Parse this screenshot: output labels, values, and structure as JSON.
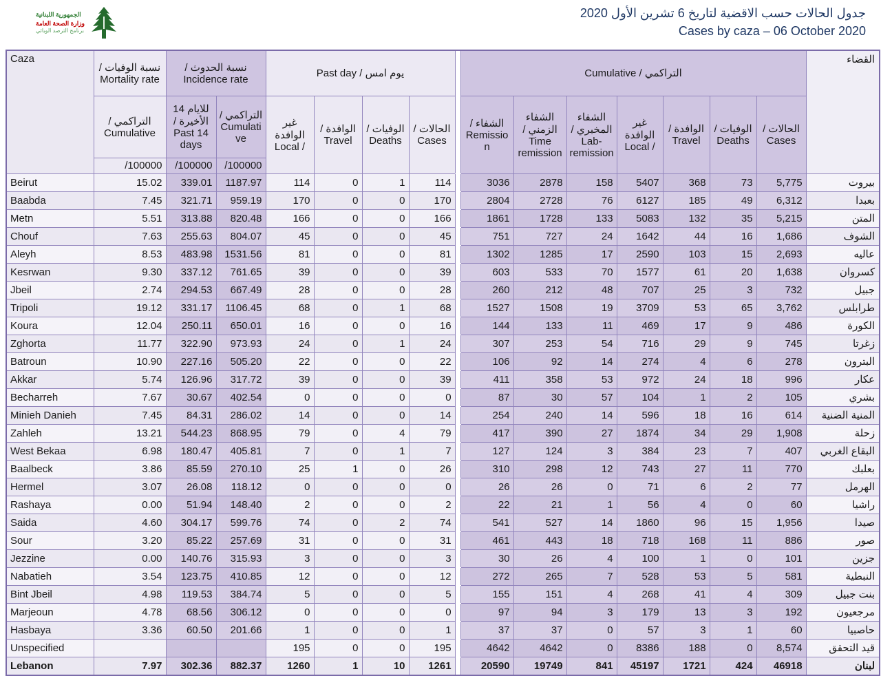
{
  "header": {
    "logo": {
      "line1": "الجمهورية اللبنانية",
      "line2": "وزارة الصحة العامة",
      "line3": "برنامج الترصد الوبائي"
    },
    "title_ar": "جدول الحالات حسب الاقضية لتاريخ  6 تشرين الأول 2020",
    "title_en": "Cases by caza – 06 October 2020"
  },
  "table": {
    "caza_en_label": "Caza",
    "caza_ar_label": "القضاء",
    "sections": {
      "mortality": {
        "label": "نسبة الوفيات /\nMortality rate",
        "sub_cumulative": "التراكمي /\nCumulative",
        "per": "/100000"
      },
      "incidence": {
        "label": "نسبة الحدوث /\nIncidence rate",
        "sub_past14": "للايام 14 الأخيرة /\nPast 14 days",
        "sub_cumulative": "التراكمي /\nCumulative",
        "per": "/100000"
      },
      "past_day": {
        "label": "Past day / يوم امس",
        "cols": [
          "غير الوافدة\nLocal /",
          "الوافدة /\nTravel",
          "الوفيات /\nDeaths",
          "الحالات /\nCases"
        ]
      },
      "cumulative": {
        "label": "Cumulative / التراكمي",
        "cols": [
          "الشفاء /\nRemission",
          "الشفاء الزمني /\nTime remission",
          "الشفاء المخبري /\nLab-remission",
          "غير الوافدة\nLocal /",
          "الوافدة /\nTravel",
          "الوفيات /\nDeaths",
          "الحالات /\nCases"
        ]
      }
    },
    "rows": [
      {
        "name_en": "Beirut",
        "mortality": "15.02",
        "incidence_14d": "339.01",
        "incidence_cum": "1187.97",
        "past_day": [
          "114",
          "0",
          "1",
          "114"
        ],
        "cumulative": [
          "3036",
          "2878",
          "158",
          "5407",
          "368",
          "73",
          "5,775"
        ],
        "name_ar": "بيروت"
      },
      {
        "name_en": "Baabda",
        "mortality": "7.45",
        "incidence_14d": "321.71",
        "incidence_cum": "959.19",
        "past_day": [
          "170",
          "0",
          "0",
          "170"
        ],
        "cumulative": [
          "2804",
          "2728",
          "76",
          "6127",
          "185",
          "49",
          "6,312"
        ],
        "name_ar": "بعبدا"
      },
      {
        "name_en": "Metn",
        "mortality": "5.51",
        "incidence_14d": "313.88",
        "incidence_cum": "820.48",
        "past_day": [
          "166",
          "0",
          "0",
          "166"
        ],
        "cumulative": [
          "1861",
          "1728",
          "133",
          "5083",
          "132",
          "35",
          "5,215"
        ],
        "name_ar": "المتن"
      },
      {
        "name_en": "Chouf",
        "mortality": "7.63",
        "incidence_14d": "255.63",
        "incidence_cum": "804.07",
        "past_day": [
          "45",
          "0",
          "0",
          "45"
        ],
        "cumulative": [
          "751",
          "727",
          "24",
          "1642",
          "44",
          "16",
          "1,686"
        ],
        "name_ar": "الشوف"
      },
      {
        "name_en": "Aleyh",
        "mortality": "8.53",
        "incidence_14d": "483.98",
        "incidence_cum": "1531.56",
        "past_day": [
          "81",
          "0",
          "0",
          "81"
        ],
        "cumulative": [
          "1302",
          "1285",
          "17",
          "2590",
          "103",
          "15",
          "2,693"
        ],
        "name_ar": "عاليه"
      },
      {
        "name_en": "Kesrwan",
        "mortality": "9.30",
        "incidence_14d": "337.12",
        "incidence_cum": "761.65",
        "past_day": [
          "39",
          "0",
          "0",
          "39"
        ],
        "cumulative": [
          "603",
          "533",
          "70",
          "1577",
          "61",
          "20",
          "1,638"
        ],
        "name_ar": "كسروان"
      },
      {
        "name_en": "Jbeil",
        "mortality": "2.74",
        "incidence_14d": "294.53",
        "incidence_cum": "667.49",
        "past_day": [
          "28",
          "0",
          "0",
          "28"
        ],
        "cumulative": [
          "260",
          "212",
          "48",
          "707",
          "25",
          "3",
          "732"
        ],
        "name_ar": "جبيل"
      },
      {
        "name_en": "Tripoli",
        "mortality": "19.12",
        "incidence_14d": "331.17",
        "incidence_cum": "1106.45",
        "past_day": [
          "68",
          "0",
          "1",
          "68"
        ],
        "cumulative": [
          "1527",
          "1508",
          "19",
          "3709",
          "53",
          "65",
          "3,762"
        ],
        "name_ar": "طرابلس"
      },
      {
        "name_en": "Koura",
        "mortality": "12.04",
        "incidence_14d": "250.11",
        "incidence_cum": "650.01",
        "past_day": [
          "16",
          "0",
          "0",
          "16"
        ],
        "cumulative": [
          "144",
          "133",
          "11",
          "469",
          "17",
          "9",
          "486"
        ],
        "name_ar": "الكورة"
      },
      {
        "name_en": "Zghorta",
        "mortality": "11.77",
        "incidence_14d": "322.90",
        "incidence_cum": "973.93",
        "past_day": [
          "24",
          "0",
          "1",
          "24"
        ],
        "cumulative": [
          "307",
          "253",
          "54",
          "716",
          "29",
          "9",
          "745"
        ],
        "name_ar": "زغرتا"
      },
      {
        "name_en": "Batroun",
        "mortality": "10.90",
        "incidence_14d": "227.16",
        "incidence_cum": "505.20",
        "past_day": [
          "22",
          "0",
          "0",
          "22"
        ],
        "cumulative": [
          "106",
          "92",
          "14",
          "274",
          "4",
          "6",
          "278"
        ],
        "name_ar": "البترون"
      },
      {
        "name_en": "Akkar",
        "mortality": "5.74",
        "incidence_14d": "126.96",
        "incidence_cum": "317.72",
        "past_day": [
          "39",
          "0",
          "0",
          "39"
        ],
        "cumulative": [
          "411",
          "358",
          "53",
          "972",
          "24",
          "18",
          "996"
        ],
        "name_ar": "عكار"
      },
      {
        "name_en": "Becharreh",
        "mortality": "7.67",
        "incidence_14d": "30.67",
        "incidence_cum": "402.54",
        "past_day": [
          "0",
          "0",
          "0",
          "0"
        ],
        "cumulative": [
          "87",
          "30",
          "57",
          "104",
          "1",
          "2",
          "105"
        ],
        "name_ar": "بشري"
      },
      {
        "name_en": "Minieh Danieh",
        "mortality": "7.45",
        "incidence_14d": "84.31",
        "incidence_cum": "286.02",
        "past_day": [
          "14",
          "0",
          "0",
          "14"
        ],
        "cumulative": [
          "254",
          "240",
          "14",
          "596",
          "18",
          "16",
          "614"
        ],
        "name_ar": "المنية الضنية"
      },
      {
        "name_en": "Zahleh",
        "mortality": "13.21",
        "incidence_14d": "544.23",
        "incidence_cum": "868.95",
        "past_day": [
          "79",
          "0",
          "4",
          "79"
        ],
        "cumulative": [
          "417",
          "390",
          "27",
          "1874",
          "34",
          "29",
          "1,908"
        ],
        "name_ar": "زحلة"
      },
      {
        "name_en": "West Bekaa",
        "mortality": "6.98",
        "incidence_14d": "180.47",
        "incidence_cum": "405.81",
        "past_day": [
          "7",
          "0",
          "1",
          "7"
        ],
        "cumulative": [
          "127",
          "124",
          "3",
          "384",
          "23",
          "7",
          "407"
        ],
        "name_ar": "البقاع الغربي"
      },
      {
        "name_en": "Baalbeck",
        "mortality": "3.86",
        "incidence_14d": "85.59",
        "incidence_cum": "270.10",
        "past_day": [
          "25",
          "1",
          "0",
          "26"
        ],
        "cumulative": [
          "310",
          "298",
          "12",
          "743",
          "27",
          "11",
          "770"
        ],
        "name_ar": "بعلبك"
      },
      {
        "name_en": "Hermel",
        "mortality": "3.07",
        "incidence_14d": "26.08",
        "incidence_cum": "118.12",
        "past_day": [
          "0",
          "0",
          "0",
          "0"
        ],
        "cumulative": [
          "26",
          "26",
          "0",
          "71",
          "6",
          "2",
          "77"
        ],
        "name_ar": "الهرمل"
      },
      {
        "name_en": "Rashaya",
        "mortality": "0.00",
        "incidence_14d": "51.94",
        "incidence_cum": "148.40",
        "past_day": [
          "2",
          "0",
          "0",
          "2"
        ],
        "cumulative": [
          "22",
          "21",
          "1",
          "56",
          "4",
          "0",
          "60"
        ],
        "name_ar": "راشيا"
      },
      {
        "name_en": "Saida",
        "mortality": "4.60",
        "incidence_14d": "304.17",
        "incidence_cum": "599.76",
        "past_day": [
          "74",
          "0",
          "2",
          "74"
        ],
        "cumulative": [
          "541",
          "527",
          "14",
          "1860",
          "96",
          "15",
          "1,956"
        ],
        "name_ar": "صيدا"
      },
      {
        "name_en": "Sour",
        "mortality": "3.20",
        "incidence_14d": "85.22",
        "incidence_cum": "257.69",
        "past_day": [
          "31",
          "0",
          "0",
          "31"
        ],
        "cumulative": [
          "461",
          "443",
          "18",
          "718",
          "168",
          "11",
          "886"
        ],
        "name_ar": "صور"
      },
      {
        "name_en": "Jezzine",
        "mortality": "0.00",
        "incidence_14d": "140.76",
        "incidence_cum": "315.93",
        "past_day": [
          "3",
          "0",
          "0",
          "3"
        ],
        "cumulative": [
          "30",
          "26",
          "4",
          "100",
          "1",
          "0",
          "101"
        ],
        "name_ar": "جزين"
      },
      {
        "name_en": "Nabatieh",
        "mortality": "3.54",
        "incidence_14d": "123.75",
        "incidence_cum": "410.85",
        "past_day": [
          "12",
          "0",
          "0",
          "12"
        ],
        "cumulative": [
          "272",
          "265",
          "7",
          "528",
          "53",
          "5",
          "581"
        ],
        "name_ar": "النبطية"
      },
      {
        "name_en": "Bint Jbeil",
        "mortality": "4.98",
        "incidence_14d": "119.53",
        "incidence_cum": "384.74",
        "past_day": [
          "5",
          "0",
          "0",
          "5"
        ],
        "cumulative": [
          "155",
          "151",
          "4",
          "268",
          "41",
          "4",
          "309"
        ],
        "name_ar": "بنت جبيل"
      },
      {
        "name_en": "Marjeoun",
        "mortality": "4.78",
        "incidence_14d": "68.56",
        "incidence_cum": "306.12",
        "past_day": [
          "0",
          "0",
          "0",
          "0"
        ],
        "cumulative": [
          "97",
          "94",
          "3",
          "179",
          "13",
          "3",
          "192"
        ],
        "name_ar": "مرجعيون"
      },
      {
        "name_en": "Hasbaya",
        "mortality": "3.36",
        "incidence_14d": "60.50",
        "incidence_cum": "201.66",
        "past_day": [
          "1",
          "0",
          "0",
          "1"
        ],
        "cumulative": [
          "37",
          "37",
          "0",
          "57",
          "3",
          "1",
          "60"
        ],
        "name_ar": "حاصبيا"
      },
      {
        "name_en": "Unspecified",
        "mortality": "",
        "incidence_14d": "",
        "incidence_cum": "",
        "past_day": [
          "195",
          "0",
          "0",
          "195"
        ],
        "cumulative": [
          "4642",
          "4642",
          "0",
          "8386",
          "188",
          "0",
          "8,574"
        ],
        "name_ar": "قيد التحقق"
      },
      {
        "name_en": "Lebanon",
        "mortality": "7.97",
        "incidence_14d": "302.36",
        "incidence_cum": "882.37",
        "past_day": [
          "1260",
          "1",
          "10",
          "1261"
        ],
        "cumulative": [
          "20590",
          "19749",
          "841",
          "45197",
          "1721",
          "424",
          "46918"
        ],
        "name_ar": "لبنان",
        "total": true
      }
    ]
  }
}
